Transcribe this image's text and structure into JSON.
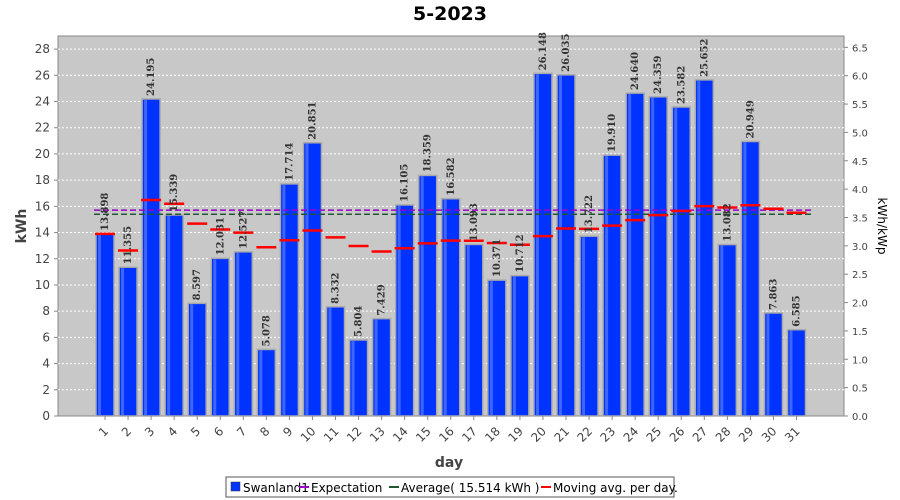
{
  "chart_data": {
    "type": "bar",
    "title": "5-2023",
    "xlabel": "day",
    "ylabel": "kWh",
    "y2label": "kWh/kWp",
    "ylim": [
      0,
      29
    ],
    "y2lim": [
      0,
      6.7
    ],
    "yticks": [
      0,
      2,
      4,
      6,
      8,
      10,
      12,
      14,
      16,
      18,
      20,
      22,
      24,
      26,
      28
    ],
    "y2ticks": [
      "0.0",
      "0.5",
      "1.0",
      "1.5",
      "2.0",
      "2.5",
      "3.0",
      "3.5",
      "4.0",
      "4.5",
      "5.0",
      "5.5",
      "6.0",
      "6.5"
    ],
    "categories": [
      "1",
      "2",
      "3",
      "4",
      "5",
      "6",
      "7",
      "8",
      "9",
      "10",
      "11",
      "12",
      "13",
      "14",
      "15",
      "16",
      "17",
      "18",
      "19",
      "20",
      "21",
      "22",
      "23",
      "24",
      "25",
      "26",
      "27",
      "28",
      "29",
      "30",
      "31"
    ],
    "series": [
      {
        "name": "Swanland1",
        "values": [
          13.898,
          11.355,
          24.195,
          15.339,
          8.597,
          12.031,
          12.527,
          5.078,
          17.714,
          20.851,
          8.332,
          5.804,
          7.429,
          16.105,
          18.359,
          16.582,
          13.093,
          10.371,
          10.712,
          26.148,
          26.035,
          13.722,
          19.91,
          24.64,
          24.359,
          23.582,
          25.652,
          13.082,
          20.949,
          7.863,
          6.585
        ],
        "labels": [
          "13.898",
          "11.355",
          "24.195",
          "15.339",
          "8.597",
          "12.031",
          "12.527",
          "5.078",
          "17.714",
          "20.851",
          "8.332",
          "5.804",
          "7.429",
          "16.105",
          "18.359",
          "16.582",
          "13.093",
          "10.371",
          "10.712",
          "26.148",
          "26.035",
          "13.722",
          "19.910",
          "24.640",
          "24.359",
          "23.582",
          "25.652",
          "13.082",
          "20.949",
          "7.863",
          "6.585"
        ],
        "color": "#0033ff"
      },
      {
        "name": "Moving avg. per day.",
        "values": [
          13.898,
          12.627,
          16.483,
          16.197,
          14.677,
          14.237,
          13.993,
          12.879,
          13.416,
          14.159,
          13.63,
          12.978,
          12.551,
          12.805,
          13.175,
          13.388,
          13.37,
          13.203,
          13.072,
          13.726,
          14.312,
          14.285,
          14.53,
          14.951,
          15.328,
          15.645,
          16.016,
          15.911,
          16.086,
          15.812,
          15.514
        ],
        "color": "#ff0000"
      }
    ],
    "reference_lines": [
      {
        "name": "Expectation",
        "value": 15.6,
        "color": "#9900cc"
      },
      {
        "name": "Average( 15.514 kWh )",
        "value": 15.514,
        "color": "#225533"
      }
    ],
    "legend": {
      "position": "bottom",
      "items": [
        {
          "label": "Swanland1",
          "color": "#0033ff",
          "kind": "square"
        },
        {
          "label": "Expectation",
          "color": "#9900cc",
          "kind": "line"
        },
        {
          "label": "Average( 15.514 kWh )",
          "color": "#225533",
          "kind": "line"
        },
        {
          "label": "Moving avg. per day.",
          "color": "#ff0000",
          "kind": "line"
        }
      ]
    },
    "grid": true,
    "plot_background": "#c8c8c8"
  }
}
